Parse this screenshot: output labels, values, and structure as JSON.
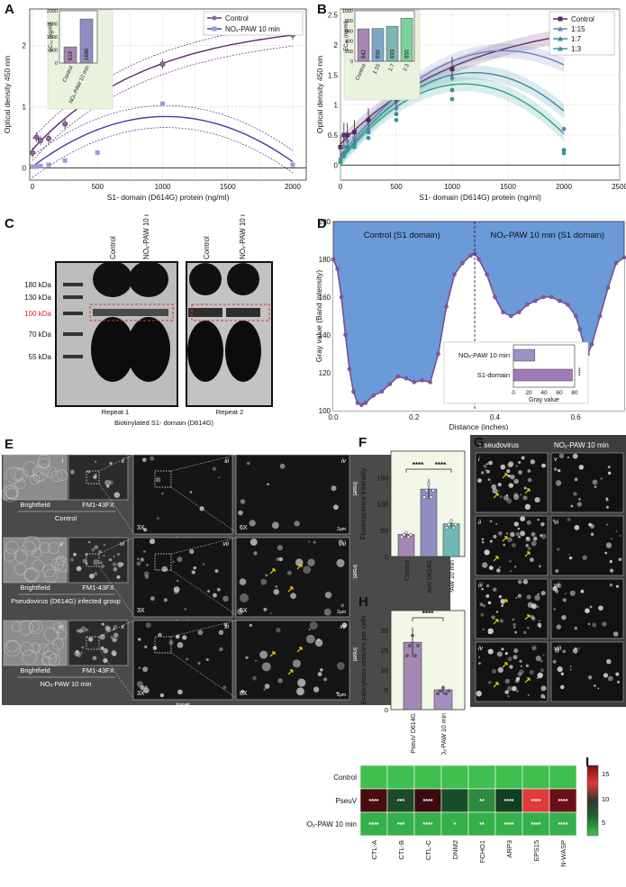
{
  "panels": {
    "A": {
      "label": "A",
      "ylabel": "Optical density 450 nm",
      "xlabel": "S1- domain (D614G) protein (ng/ml)",
      "legend": [
        "Control",
        "NOₓ-PAW 10 min"
      ],
      "xticks": [
        "0",
        "500",
        "1000",
        "1500",
        "2000"
      ],
      "yticks": [
        "0",
        "1",
        "2"
      ],
      "inset": {
        "ylabel": "EC₅₀ (ng/ml)",
        "yticks": [
          "0",
          "500",
          "1000",
          "1500",
          "2000"
        ],
        "bars": [
          "Control",
          "NOₓ-PAW 10 min"
        ],
        "values": [
          "619",
          "1686"
        ]
      }
    },
    "B": {
      "label": "B",
      "ylabel": "Optical density 450 nm",
      "xlabel": "S1- domain (D614G) protein (ng/ml)",
      "legend": [
        "Control",
        "1:15",
        "1:7",
        "1:3"
      ],
      "xticks": [
        "0",
        "500",
        "1000",
        "1500",
        "2000",
        "2500"
      ],
      "yticks": [
        "0",
        "0.5",
        "1",
        "1.5",
        "2",
        "2.5"
      ],
      "inset": {
        "ylabel": "EC₅₀ (ng/ml)",
        "yticks": [
          "0",
          "200",
          "400",
          "600",
          "800",
          "1000"
        ],
        "bars": [
          "Control",
          "1:15",
          "1:7",
          "1:3"
        ],
        "values": [
          "642",
          "650",
          "693",
          "850"
        ]
      }
    },
    "C": {
      "label": "C",
      "lane_labels": [
        "Control",
        "NOₓ-PAW 10 min",
        "Control",
        "NOₓ-PAW 10 min"
      ],
      "markers": [
        "180 kDa",
        "130 kDa",
        "100 kDa",
        "70 kDa",
        "55 kDa"
      ],
      "repeat1": "Repeat 1",
      "repeat2": "Repeat 2",
      "footer": "Biotinylated S1- domain (D614G)"
    },
    "D": {
      "label": "D",
      "ylabel": "Gray value (Band intensity)",
      "xlabel": "Distance (inches)",
      "left_title": "Control (S1 domain)",
      "right_title": "NOₓ-PAW 10 min (S1 domain)",
      "xticks": [
        "0.0",
        "0.2",
        "0.4",
        "0.6"
      ],
      "yticks": [
        "100",
        "120",
        "140",
        "160",
        "180",
        "200"
      ],
      "inset": {
        "labels": [
          "NOₓ-PAW 10 min",
          "S1-domain"
        ],
        "xlabel": "Gray value",
        "xticks": [
          "0",
          "20",
          "40",
          "60",
          "80"
        ],
        "values": [
          28,
          77
        ]
      }
    },
    "E": {
      "label": "E",
      "rows": [
        {
          "roman": [
            "i",
            "ii",
            "iii",
            "iv"
          ],
          "tags": [
            "Brightfield",
            "FM1-43FX",
            "3X",
            "6X"
          ],
          "group": "Control"
        },
        {
          "roman": [
            "v",
            "vi",
            "vii",
            "viii"
          ],
          "tags": [
            "Brightfield",
            "FM1-43FX",
            "3X",
            "6X"
          ],
          "group": "Pseudovirus (D614G) infected group"
        },
        {
          "roman": [
            "ix",
            "x",
            "xi",
            "xii"
          ],
          "tags": [
            "Brightfield",
            "FM1-43FX",
            "3X",
            "8X"
          ],
          "group": "NOₓ-PAW 10 min"
        }
      ],
      "inset_word": "Inset",
      "scale": "2µm"
    },
    "F": {
      "label": "F",
      "ylabel": "Fluorescence intensity",
      "yticks": [
        "0",
        "50",
        "100",
        "150"
      ],
      "groups": [
        "Control",
        "PseuV D614G",
        "NOₓ-PAW 10 min"
      ],
      "values": [
        42,
        128,
        62
      ],
      "sig": "****"
    },
    "G": {
      "label": "G",
      "col_headers": [
        "Pseudovirus",
        "NOₓ-PAW 10 min"
      ],
      "roman_left": [
        "i",
        "ii",
        "iii",
        "iv"
      ],
      "roman_right": [
        "v",
        "vi",
        "vii",
        "viii"
      ]
    },
    "H": {
      "label": "H",
      "ylabel": "Endocytosis vesicles per cells",
      "yticks": [
        "0",
        "5",
        "10",
        "15",
        "20"
      ],
      "groups": [
        "PseuV D614G",
        "NOₓ-PAW 10 min"
      ],
      "values": [
        17,
        5
      ],
      "sig": "****"
    },
    "I": {
      "label": "I",
      "rows": [
        "Control",
        "PseuV",
        "NOₓ-PAW 10 min"
      ],
      "cols": [
        "CTL-A",
        "CTL-B",
        "CTL-C",
        "DNM2",
        "FCHO1",
        "ARP3",
        "EPS15",
        "N-WASP"
      ],
      "colorbar_ticks": [
        "15",
        "10",
        "5"
      ],
      "pseuv_sig": [
        "****",
        "***",
        "****",
        "",
        "**",
        "****",
        "****",
        "****"
      ],
      "paw_sig": [
        "****",
        "***",
        "****",
        "*",
        "**",
        "****",
        "****",
        "****"
      ]
    }
  },
  "chart_data": [
    {
      "type": "scatter",
      "panel": "A",
      "xlabel": "S1- domain (D614G) protein (ng/ml)",
      "ylabel": "Optical density 450 nm",
      "xlim": [
        0,
        2000
      ],
      "ylim": [
        -0.2,
        2.6
      ],
      "series": [
        {
          "name": "Control",
          "x": [
            0,
            31,
            62,
            125,
            250,
            500,
            1000,
            2000
          ],
          "y": [
            0.25,
            0.5,
            0.45,
            0.48,
            0.72,
            1.08,
            1.7,
            2.18
          ]
        },
        {
          "name": "NOₓ-PAW 10 min",
          "x": [
            0,
            31,
            62,
            125,
            250,
            500,
            1000,
            2000
          ],
          "y": [
            0.02,
            0.02,
            0.03,
            0.05,
            0.12,
            0.25,
            1.05,
            0.05
          ]
        }
      ]
    },
    {
      "type": "bar",
      "panel": "A-inset",
      "categories": [
        "Control",
        "NOₓ-PAW 10 min"
      ],
      "values": [
        619,
        1686
      ],
      "ylim": [
        0,
        2000
      ]
    },
    {
      "type": "scatter",
      "panel": "B",
      "xlabel": "S1- domain (D614G) protein (ng/ml)",
      "ylabel": "Optical density 450 nm",
      "xlim": [
        0,
        2500
      ],
      "ylim": [
        -0.25,
        2.6
      ],
      "series": [
        {
          "name": "Control",
          "x": [
            0,
            31,
            62,
            125,
            250,
            500,
            1000,
            2000
          ],
          "y": [
            0.3,
            0.5,
            0.5,
            0.55,
            0.75,
            1.1,
            1.6,
            2.25
          ]
        },
        {
          "name": "1:15",
          "x": [
            0,
            31,
            62,
            125,
            250,
            500,
            1000,
            2000
          ],
          "y": [
            0.1,
            0.3,
            0.4,
            0.45,
            0.6,
            0.95,
            1.45,
            0.6
          ]
        },
        {
          "name": "1:7",
          "x": [
            0,
            31,
            62,
            125,
            250,
            500,
            1000,
            2000
          ],
          "y": [
            0.05,
            0.2,
            0.3,
            0.35,
            0.55,
            0.85,
            1.25,
            0.25
          ]
        },
        {
          "name": "1:3",
          "x": [
            0,
            31,
            62,
            125,
            250,
            500,
            1000,
            2000
          ],
          "y": [
            0.05,
            0.15,
            0.25,
            0.3,
            0.45,
            0.75,
            1.1,
            0.2
          ]
        }
      ]
    },
    {
      "type": "bar",
      "panel": "B-inset",
      "categories": [
        "Control",
        "1:15",
        "1:7",
        "1:3"
      ],
      "values": [
        642,
        650,
        693,
        850
      ],
      "ylim": [
        0,
        1000
      ]
    },
    {
      "type": "area",
      "panel": "D",
      "xlabel": "Distance (inches)",
      "ylabel": "Gray value (Band intensity)",
      "xlim": [
        0,
        0.72
      ],
      "ylim": [
        100,
        200
      ],
      "x": [
        0.0,
        0.01,
        0.02,
        0.03,
        0.04,
        0.05,
        0.06,
        0.07,
        0.08,
        0.1,
        0.12,
        0.14,
        0.16,
        0.18,
        0.2,
        0.22,
        0.24,
        0.26,
        0.28,
        0.3,
        0.32,
        0.34,
        0.35,
        0.36,
        0.38,
        0.4,
        0.42,
        0.44,
        0.46,
        0.48,
        0.5,
        0.52,
        0.54,
        0.56,
        0.58,
        0.6,
        0.61,
        0.62,
        0.63,
        0.64,
        0.66,
        0.68,
        0.7,
        0.72
      ],
      "y": [
        180,
        175,
        160,
        140,
        122,
        110,
        104,
        103,
        104,
        108,
        110,
        114,
        118,
        117,
        115,
        116,
        115,
        130,
        155,
        172,
        178,
        182,
        183,
        180,
        172,
        160,
        152,
        150,
        152,
        156,
        158,
        160,
        160,
        158,
        156,
        150,
        143,
        135,
        130,
        135,
        150,
        165,
        178,
        181
      ]
    },
    {
      "type": "bar",
      "panel": "D-inset",
      "categories": [
        "NOₓ-PAW 10 min",
        "S1-domain"
      ],
      "values": [
        28,
        77
      ],
      "ylim": [
        0,
        80
      ]
    },
    {
      "type": "bar",
      "panel": "F",
      "ylabel": "Fluorescence intensity",
      "categories": [
        "Control",
        "PseuV D614G",
        "NOₓ-PAW 10 min"
      ],
      "values": [
        42,
        128,
        62
      ],
      "ylim": [
        0,
        200
      ]
    },
    {
      "type": "bar",
      "panel": "H",
      "ylabel": "Endocytosis vesicles per cells",
      "categories": [
        "PseuV D614G",
        "NOₓ-PAW 10 min"
      ],
      "values": [
        17,
        5
      ],
      "ylim": [
        0,
        25
      ]
    },
    {
      "type": "heatmap",
      "panel": "I",
      "rows": [
        "Control",
        "PseuV",
        "NOₓ-PAW 10 min"
      ],
      "cols": [
        "CTL-A",
        "CTL-B",
        "CTL-C",
        "DNM2",
        "FCHO1",
        "ARP3",
        "EPS15",
        "N-WASP"
      ],
      "values": [
        [
          5,
          5,
          5,
          5,
          5,
          5,
          5,
          5
        ],
        [
          17,
          9,
          17,
          8,
          6,
          9,
          14,
          16
        ],
        [
          3,
          3,
          3,
          3,
          3,
          3,
          3,
          3
        ]
      ],
      "colorbar": [
        3,
        18
      ]
    }
  ],
  "colors": {
    "control": "#5b2a66",
    "paw": "#3c3f9a",
    "r15": "#6b7fb8",
    "r7": "#3a8a9a",
    "r3": "#2aa08a",
    "bar_control": "#a487b3",
    "bar_pseuv": "#8e8ec2",
    "bar_paw": "#6fb8b4",
    "blue_fill": "#6a9ad8",
    "purple": "#7a4f8f"
  }
}
